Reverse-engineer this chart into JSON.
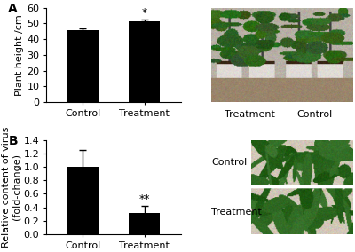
{
  "panel_A": {
    "categories": [
      "Control",
      "Treatment"
    ],
    "values": [
      45.5,
      51.0
    ],
    "errors": [
      1.5,
      1.2
    ],
    "ylabel": "Plant height /cm",
    "ylim": [
      0,
      60
    ],
    "yticks": [
      0,
      10,
      20,
      30,
      40,
      50,
      60
    ],
    "bar_color": "#000000",
    "label": "A",
    "significance": [
      "",
      "*"
    ],
    "significance_fontsize": 9
  },
  "panel_B": {
    "categories": [
      "Control",
      "Treatment"
    ],
    "values": [
      1.0,
      0.32
    ],
    "errors": [
      0.25,
      0.1
    ],
    "ylabel": "Relative content of virus\n(fold-change)",
    "ylim": [
      0,
      1.4
    ],
    "yticks": [
      0.0,
      0.2,
      0.4,
      0.6,
      0.8,
      1.0,
      1.2,
      1.4
    ],
    "bar_color": "#000000",
    "label": "B",
    "significance": [
      "",
      "**"
    ],
    "significance_fontsize": 9
  },
  "photo_A": {
    "label_left": "Treatment",
    "label_right": "Control",
    "text_color": "#000000",
    "bg_color_wall": [
      0.72,
      0.69,
      0.65
    ],
    "bg_color_floor": [
      0.6,
      0.52,
      0.42
    ],
    "pot_color": [
      0.88,
      0.86,
      0.84
    ],
    "soil_color": [
      0.22,
      0.15,
      0.08
    ],
    "leaf_color": [
      0.18,
      0.38,
      0.12
    ]
  },
  "photo_B": {
    "label_top": "Control",
    "label_bottom": "Treatment",
    "text_color": "#000000",
    "leaf_green": [
      0.15,
      0.38,
      0.1
    ],
    "bg_color": [
      0.82,
      0.78,
      0.72
    ]
  },
  "figure_bg": "#ffffff",
  "bar_width": 0.5,
  "fontsize": 8
}
